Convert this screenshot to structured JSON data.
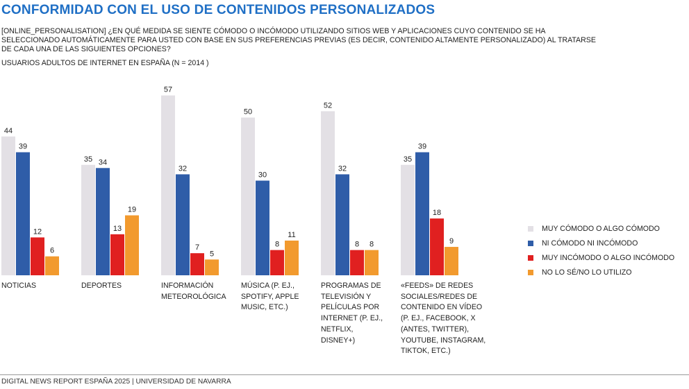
{
  "header": {
    "title": "CONFORMIDAD CON EL USO DE CONTENIDOS PERSONALIZADOS",
    "subtitle": "[ONLINE_PERSONALISATION] ¿EN QUÉ MEDIDA SE SIENTE CÓMODO O INCÓMODO UTILIZANDO SITIOS WEB Y APLICACIONES CUYO CONTENIDO SE HA SELECCIONADO AUTOMÁTICAMENTE PARA USTED CON BASE EN SUS PREFERENCIAS PREVIAS (ES DECIR, CONTENIDO ALTAMENTE PERSONALIZADO) AL TRATARSE DE CADA UNA DE LAS SIGUIENTES OPCIONES?",
    "base": "USUARIOS ADULTOS DE INTERNET EN ESPAÑA (N = 2014 )"
  },
  "chart_data": {
    "type": "bar",
    "categories": [
      "NOTICIAS",
      "DEPORTES",
      "INFORMACIÓN METEOROLÓGICA",
      "MÚSICA (P. EJ., SPOTIFY, APPLE MUSIC, ETC.)",
      "PROGRAMAS DE TELEVISIÓN Y PELÍCULAS POR INTERNET (P. EJ., NETFLIX, DISNEY+)",
      "«FEEDS» DE REDES SOCIALES/REDES DE CONTENIDO EN VÍDEO (P. EJ., FACEBOOK, X (ANTES, TWITTER), YOUTUBE, INSTAGRAM, TIKTOK, ETC.)"
    ],
    "series": [
      {
        "name": "MUY CÓMODO O ALGO CÓMODO",
        "color": "#e3e0e5",
        "values": [
          44,
          35,
          57,
          50,
          52,
          35
        ]
      },
      {
        "name": "NI CÓMODO NI INCÓMODO",
        "color": "#2f5da8",
        "values": [
          39,
          34,
          32,
          30,
          32,
          39
        ]
      },
      {
        "name": "MUY INCÓMODO O ALGO INCÓMODO",
        "color": "#e02020",
        "values": [
          12,
          13,
          7,
          8,
          8,
          18
        ]
      },
      {
        "name": "NO LO SÉ/NO LO UTILIZO",
        "color": "#f29a2e",
        "values": [
          6,
          19,
          5,
          11,
          8,
          9
        ]
      }
    ],
    "ylim": [
      0,
      57
    ],
    "grid": false,
    "legend_position": "right",
    "data_labels": true
  },
  "footer": {
    "source": "DIGITAL NEWS REPORT ESPAÑA 2025 | UNIVERSIDAD DE NAVARRA"
  }
}
